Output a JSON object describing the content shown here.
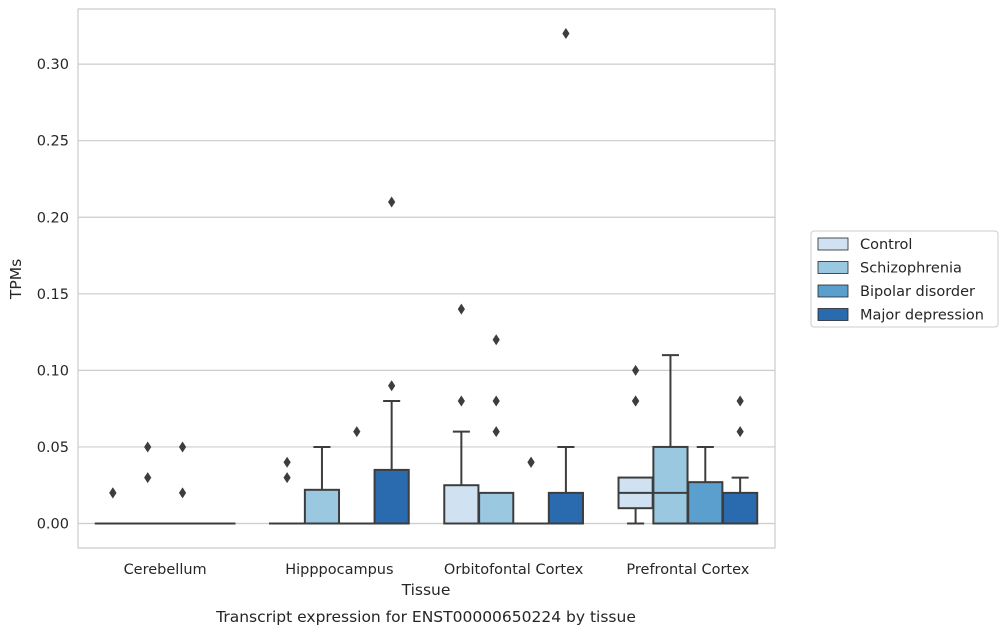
{
  "chart_data": {
    "type": "box",
    "title": "",
    "caption": "Transcript expression for ENST00000650224 by tissue",
    "xlabel": "Tissue",
    "ylabel": "TPMs",
    "ylim": [
      -0.016,
      0.336
    ],
    "yticks": [
      0.0,
      0.05,
      0.1,
      0.15,
      0.2,
      0.25,
      0.3
    ],
    "ytick_labels": [
      "0.00",
      "0.05",
      "0.10",
      "0.15",
      "0.20",
      "0.25",
      "0.30"
    ],
    "grid": "horizontal",
    "legend_position": "right",
    "categories": [
      "Cerebellum",
      "Hipppocampus",
      "Orbitofontal Cortex",
      "Prefrontal Cortex"
    ],
    "series": [
      {
        "name": "Control",
        "color": "#d0e2f2",
        "boxes": [
          {
            "q1": 0.0,
            "median": 0.0,
            "q3": 0.0,
            "whisker_low": 0.0,
            "whisker_high": 0.0,
            "outliers": [
              0.02,
              0.02
            ]
          },
          {
            "q1": 0.0,
            "median": 0.0,
            "q3": 0.0,
            "whisker_low": 0.0,
            "whisker_high": 0.0,
            "outliers": [
              0.03,
              0.04
            ]
          },
          {
            "q1": 0.0,
            "median": 0.0,
            "q3": 0.025,
            "whisker_low": 0.0,
            "whisker_high": 0.06,
            "outliers": [
              0.08,
              0.14
            ]
          },
          {
            "q1": 0.01,
            "median": 0.02,
            "q3": 0.03,
            "whisker_low": 0.0,
            "whisker_high": 0.03,
            "outliers": [
              0.08,
              0.08,
              0.1
            ]
          }
        ]
      },
      {
        "name": "Schizophrenia",
        "color": "#9ac8e0",
        "boxes": [
          {
            "q1": 0.0,
            "median": 0.0,
            "q3": 0.0,
            "whisker_low": 0.0,
            "whisker_high": 0.0,
            "outliers": [
              0.03,
              0.05
            ]
          },
          {
            "q1": 0.0,
            "median": 0.0,
            "q3": 0.022,
            "whisker_low": 0.0,
            "whisker_high": 0.05,
            "outliers": []
          },
          {
            "q1": 0.0,
            "median": 0.0,
            "q3": 0.02,
            "whisker_low": 0.0,
            "whisker_high": 0.02,
            "outliers": [
              0.06,
              0.08,
              0.12
            ]
          },
          {
            "q1": 0.0,
            "median": 0.02,
            "q3": 0.05,
            "whisker_low": 0.0,
            "whisker_high": 0.11,
            "outliers": []
          }
        ]
      },
      {
        "name": "Bipolar disorder",
        "color": "#5a9fcd",
        "boxes": [
          {
            "q1": 0.0,
            "median": 0.0,
            "q3": 0.0,
            "whisker_low": 0.0,
            "whisker_high": 0.0,
            "outliers": [
              0.02,
              0.05
            ]
          },
          {
            "q1": 0.0,
            "median": 0.0,
            "q3": 0.0,
            "whisker_low": 0.0,
            "whisker_high": 0.0,
            "outliers": [
              0.06
            ]
          },
          {
            "q1": 0.0,
            "median": 0.0,
            "q3": 0.0,
            "whisker_low": 0.0,
            "whisker_high": 0.0,
            "outliers": [
              0.04,
              0.04
            ]
          },
          {
            "q1": 0.0,
            "median": 0.0,
            "q3": 0.027,
            "whisker_low": 0.0,
            "whisker_high": 0.05,
            "outliers": []
          }
        ]
      },
      {
        "name": "Major depression",
        "color": "#2a6bb0",
        "boxes": [
          {
            "q1": 0.0,
            "median": 0.0,
            "q3": 0.0,
            "whisker_low": 0.0,
            "whisker_high": 0.0,
            "outliers": []
          },
          {
            "q1": 0.0,
            "median": 0.0,
            "q3": 0.035,
            "whisker_low": 0.0,
            "whisker_high": 0.08,
            "outliers": [
              0.09,
              0.21
            ]
          },
          {
            "q1": 0.0,
            "median": 0.0,
            "q3": 0.02,
            "whisker_low": 0.0,
            "whisker_high": 0.05,
            "outliers": [
              0.32
            ]
          },
          {
            "q1": 0.0,
            "median": 0.0,
            "q3": 0.02,
            "whisker_low": 0.0,
            "whisker_high": 0.03,
            "outliers": [
              0.06,
              0.08
            ]
          }
        ]
      }
    ]
  }
}
